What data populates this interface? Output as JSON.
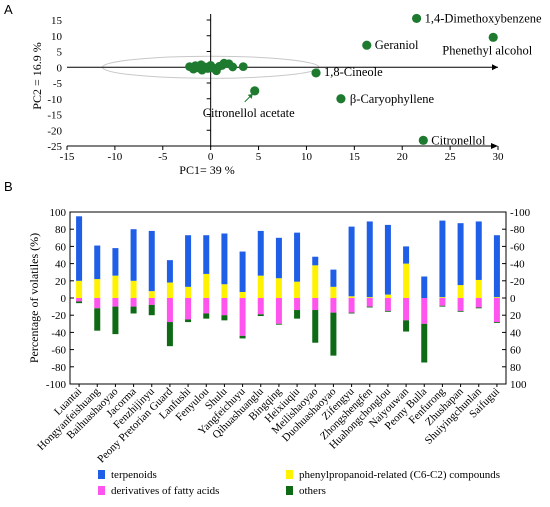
{
  "chart_data": [
    {
      "panel": "A",
      "type": "scatter",
      "xlabel": "PC1= 39 %",
      "ylabel": "PC2 = 16.9 %",
      "xlim": [
        -15,
        30
      ],
      "ylim": [
        -25,
        15
      ],
      "xticks": [
        -15,
        -10,
        -5,
        0,
        5,
        10,
        15,
        20,
        25,
        30
      ],
      "yticks": [
        15,
        10,
        5,
        0,
        -5,
        -10,
        -15,
        -20,
        -25
      ],
      "color": "#1e7a2e",
      "ellipse": {
        "cx": 0,
        "cy": 0,
        "rx": 11.3,
        "ry": 3.5
      },
      "points": [
        {
          "x": -2.2,
          "y": 0.2
        },
        {
          "x": -1.8,
          "y": -0.6
        },
        {
          "x": -1.6,
          "y": 0.5
        },
        {
          "x": -1.3,
          "y": -0.2
        },
        {
          "x": -1.0,
          "y": 0.8
        },
        {
          "x": -0.9,
          "y": -0.9
        },
        {
          "x": -0.6,
          "y": 0.1
        },
        {
          "x": -0.3,
          "y": -0.4
        },
        {
          "x": 0.0,
          "y": 0.6
        },
        {
          "x": 0.3,
          "y": -0.3
        },
        {
          "x": 0.6,
          "y": -1.1
        },
        {
          "x": 0.9,
          "y": 0.3
        },
        {
          "x": 1.2,
          "y": 0.6
        },
        {
          "x": 1.4,
          "y": 1.3
        },
        {
          "x": 1.9,
          "y": 1.1
        },
        {
          "x": 2.3,
          "y": 0.1
        },
        {
          "x": 3.4,
          "y": 0.2
        }
      ],
      "labeled_points": [
        {
          "label": "1,4-Dimethoxybenzene",
          "x": 21.5,
          "y": 15.5
        },
        {
          "label": "Phenethyl alcohol",
          "x": 29.5,
          "y": 9.5
        },
        {
          "label": "Geraniol",
          "x": 16.3,
          "y": 7.0
        },
        {
          "label": "1,8-Cineole",
          "x": 11.0,
          "y": -1.8
        },
        {
          "label": "Citronellol acetate",
          "x": 4.6,
          "y": -7.5
        },
        {
          "label": "β-Caryophyllene",
          "x": 13.6,
          "y": -10.0
        },
        {
          "label": "Citronellol",
          "x": 22.2,
          "y": -23.2
        }
      ]
    },
    {
      "panel": "B",
      "type": "bar",
      "stacked": true,
      "ylabel": "Percentage of volatiles (%)",
      "ylim": [
        -100,
        100
      ],
      "yticks_left": [
        100,
        80,
        60,
        40,
        20,
        0,
        -20,
        -40,
        -60,
        -80,
        -100
      ],
      "yticks_right": [
        -100,
        -80,
        -60,
        -40,
        -20,
        0,
        20,
        40,
        60,
        80,
        100
      ],
      "categories": [
        "Luantai",
        "Hongyanfeishuang",
        "Baihuashaoyao",
        "Jacorma",
        "Fenzhijinyu",
        "Peony Pretorian Guard",
        "Lanfushi",
        "Fenyulou",
        "Shulu",
        "Yangfeichuyu",
        "Qihuashuanglu",
        "Bingqing",
        "Heixiuqiu",
        "Meilishaoyao",
        "Duohuashaoyao",
        "Zifengyu",
        "Zhongshengfen",
        "Huahongchonglou",
        "Naiyouwan",
        "Peony Bulla",
        "Fenfurong",
        "Zhushapan",
        "Shuiyingchunlan",
        "Saifugui"
      ],
      "series": [
        {
          "name": "terpenoids",
          "color": "#1f5ee6",
          "values": [
            75,
            39,
            32,
            60,
            70,
            26,
            60,
            45,
            59,
            47,
            52,
            47,
            57,
            10,
            20,
            81,
            88,
            81,
            20,
            25,
            89,
            72,
            68,
            72
          ]
        },
        {
          "name": "phenylpropanoid-related (C6-C2) compounds",
          "color": "#fff200",
          "values": [
            20,
            22,
            26,
            20,
            8,
            18,
            13,
            28,
            16,
            7,
            26,
            23,
            19,
            38,
            13,
            2,
            1,
            4,
            40,
            0,
            1,
            15,
            21,
            1
          ]
        },
        {
          "name": "derivatives of fatty acids",
          "color": "#ff55ee",
          "values": [
            -4,
            -12,
            -10,
            -10,
            -8,
            -28,
            -25,
            -18,
            -20,
            -44,
            -19,
            -30,
            -14,
            -14,
            -17,
            -17,
            -10,
            -15,
            -26,
            -30,
            -9,
            -15,
            -11,
            -28
          ]
        },
        {
          "name": "others",
          "color": "#0e6a14",
          "values": [
            -2,
            -26,
            -32,
            -8,
            -12,
            -28,
            -3,
            -6,
            -6,
            -3,
            -2,
            -1,
            -10,
            -38,
            -50,
            -1,
            -1,
            -1,
            -13,
            -45,
            -1,
            -1,
            -1,
            -1
          ]
        }
      ],
      "legend_position": "bottom"
    }
  ]
}
